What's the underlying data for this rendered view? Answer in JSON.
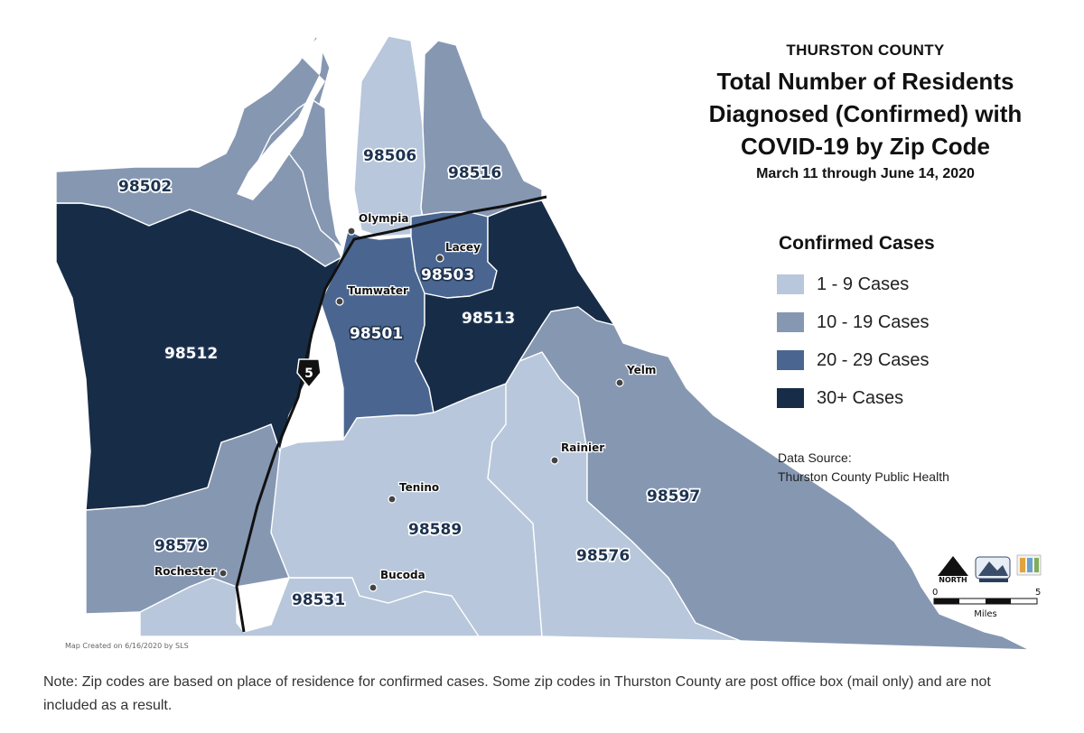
{
  "header": {
    "county": "THURSTON COUNTY",
    "title_lines": [
      "Total Number of Residents",
      "Diagnosed (Confirmed) with",
      "COVID-19 by Zip Code"
    ],
    "date_range": "March 11 through June 14, 2020"
  },
  "legend": {
    "title": "Confirmed Cases",
    "items": [
      {
        "label": "1 - 9 Cases",
        "color": "#b8c7db"
      },
      {
        "label": "10 - 19 Cases",
        "color": "#8697b2"
      },
      {
        "label": "20 - 29 Cases",
        "color": "#4a6690"
      },
      {
        "label": "30+ Cases",
        "color": "#172c47"
      }
    ]
  },
  "data_source": {
    "heading": "Data Source:",
    "name": "Thurston County Public Health"
  },
  "map": {
    "zip_codes": [
      {
        "zip": "98502",
        "category": "10 - 19 Cases"
      },
      {
        "zip": "98506",
        "category": "1 - 9 Cases"
      },
      {
        "zip": "98516",
        "category": "10 - 19 Cases"
      },
      {
        "zip": "98512",
        "category": "30+ Cases"
      },
      {
        "zip": "98503",
        "category": "20 - 29 Cases"
      },
      {
        "zip": "98501",
        "category": "20 - 29 Cases"
      },
      {
        "zip": "98513",
        "category": "30+ Cases"
      },
      {
        "zip": "98597",
        "category": "10 - 19 Cases"
      },
      {
        "zip": "98579",
        "category": "10 - 19 Cases"
      },
      {
        "zip": "98589",
        "category": "1 - 9 Cases"
      },
      {
        "zip": "98576",
        "category": "1 - 9 Cases"
      },
      {
        "zip": "98531",
        "category": "1 - 9 Cases"
      }
    ],
    "cities": [
      "Olympia",
      "Lacey",
      "Tumwater",
      "Yelm",
      "Rainier",
      "Tenino",
      "Bucoda",
      "Rochester"
    ],
    "highway_shield": "5",
    "north_label": "NORTH",
    "scale": {
      "min": "0",
      "max": "5",
      "unit": "Miles"
    },
    "credit": "Map Created on 6/16/2020 by SLS"
  },
  "note": "Note: Zip codes are based on place of residence for confirmed cases. Some zip codes in Thurston County are post office box (mail only) and are not included as a result."
}
